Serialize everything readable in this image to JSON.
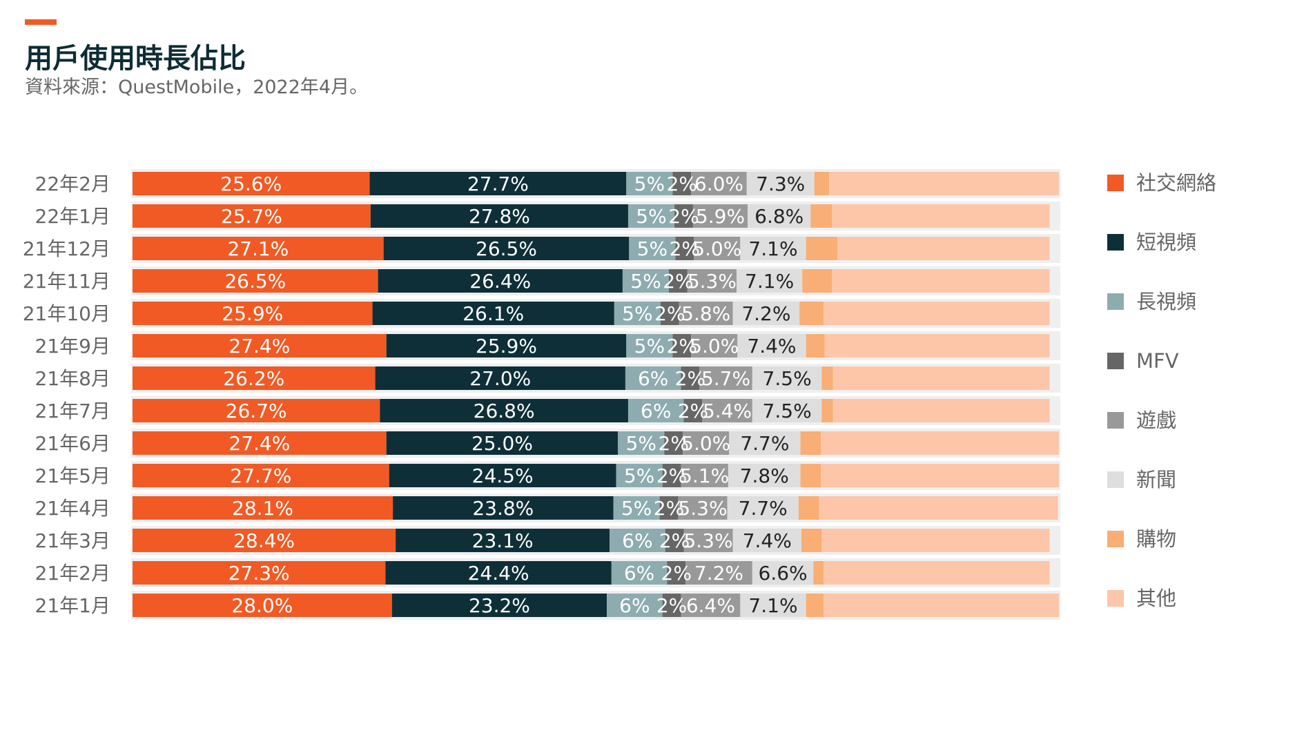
{
  "title": "用戶使用時長佔比",
  "subtitle": "資料來源：QuestMobile，2022年4月。",
  "colors": {
    "accent": "#f15a24",
    "track": "#efefef",
    "label_light": "#ffffff",
    "label_dark": "#222222",
    "axis_text": "#666666"
  },
  "chart_data": {
    "type": "bar",
    "orientation": "horizontal",
    "stacked": true,
    "unit": "%",
    "grid": false,
    "legend_position": "right",
    "categories": [
      "22年2月",
      "22年1月",
      "21年12月",
      "21年11月",
      "21年10月",
      "21年9月",
      "21年8月",
      "21年7月",
      "21年6月",
      "21年5月",
      "21年4月",
      "21年3月",
      "21年2月",
      "21年1月"
    ],
    "series": [
      {
        "name": "社交網絡",
        "color": "#f15a24",
        "values": [
          25.6,
          25.7,
          27.1,
          26.5,
          25.9,
          27.4,
          26.2,
          26.7,
          27.4,
          27.7,
          28.1,
          28.4,
          27.3,
          28.0
        ],
        "labels": [
          "25.6%",
          "25.7%",
          "27.1%",
          "26.5%",
          "25.9%",
          "27.4%",
          "26.2%",
          "26.7%",
          "27.4%",
          "27.7%",
          "28.1%",
          "28.4%",
          "27.3%",
          "28.0%"
        ]
      },
      {
        "name": "短視頻",
        "color": "#0f2f38",
        "values": [
          27.7,
          27.8,
          26.5,
          26.4,
          26.1,
          25.9,
          27.0,
          26.8,
          25.0,
          24.5,
          23.8,
          23.1,
          24.4,
          23.2
        ],
        "labels": [
          "27.7%",
          "27.8%",
          "26.5%",
          "26.4%",
          "26.1%",
          "25.9%",
          "27.0%",
          "26.8%",
          "25.0%",
          "24.5%",
          "23.8%",
          "23.1%",
          "24.4%",
          "23.2%"
        ]
      },
      {
        "name": "長視頻",
        "color": "#8eacb0",
        "values": [
          5,
          5,
          5,
          5,
          5,
          5,
          6,
          6,
          5,
          5,
          5,
          6,
          6,
          6
        ],
        "labels": [
          "5%",
          "5%",
          "5%",
          "5%",
          "5%",
          "5%",
          "6%",
          "6%",
          "5%",
          "5%",
          "5%",
          "6%",
          "6%",
          "6%"
        ]
      },
      {
        "name": "MFV",
        "color": "#666666",
        "values": [
          2,
          2,
          2,
          2,
          2,
          2,
          2,
          2,
          2,
          2,
          2,
          2,
          2,
          2
        ],
        "labels": [
          "2%",
          "2%",
          "2%",
          "2%",
          "2%",
          "2%",
          "2%",
          "2%",
          "2%",
          "2%",
          "2%",
          "2%",
          "2%",
          "2%"
        ]
      },
      {
        "name": "遊戲",
        "color": "#999999",
        "values": [
          6.0,
          5.9,
          5.0,
          5.3,
          5.8,
          5.0,
          5.7,
          5.4,
          5.0,
          5.1,
          5.3,
          5.3,
          7.2,
          6.4
        ],
        "labels": [
          "6.0%",
          "5.9%",
          "5.0%",
          "5.3%",
          "5.8%",
          "5.0%",
          "5.7%",
          "5.4%",
          "5.0%",
          "5.1%",
          "5.3%",
          "5.3%",
          "7.2%",
          "6.4%"
        ]
      },
      {
        "name": "新聞",
        "color": "#dedede",
        "values": [
          7.3,
          6.8,
          7.1,
          7.1,
          7.2,
          7.4,
          7.5,
          7.5,
          7.7,
          7.8,
          7.7,
          7.4,
          6.6,
          7.1
        ],
        "labels": [
          "7.3%",
          "6.8%",
          "7.1%",
          "7.1%",
          "7.2%",
          "7.4%",
          "7.5%",
          "7.5%",
          "7.7%",
          "7.8%",
          "7.7%",
          "7.4%",
          "6.6%",
          "7.1%"
        ]
      },
      {
        "name": "購物",
        "color": "#f8ae74",
        "values": [
          1.6,
          2.3,
          3.4,
          3.2,
          2.6,
          2.0,
          1.2,
          1.2,
          2.2,
          2.2,
          2.2,
          2.2,
          1.1,
          1.9
        ]
      },
      {
        "name": "其他",
        "color": "#fdc6a8",
        "values": [
          24.8,
          23.5,
          22.9,
          23.5,
          24.4,
          24.3,
          23.4,
          23.4,
          25.7,
          25.7,
          25.8,
          24.6,
          24.4,
          25.4
        ]
      }
    ],
    "xlim": [
      0,
      100
    ]
  }
}
